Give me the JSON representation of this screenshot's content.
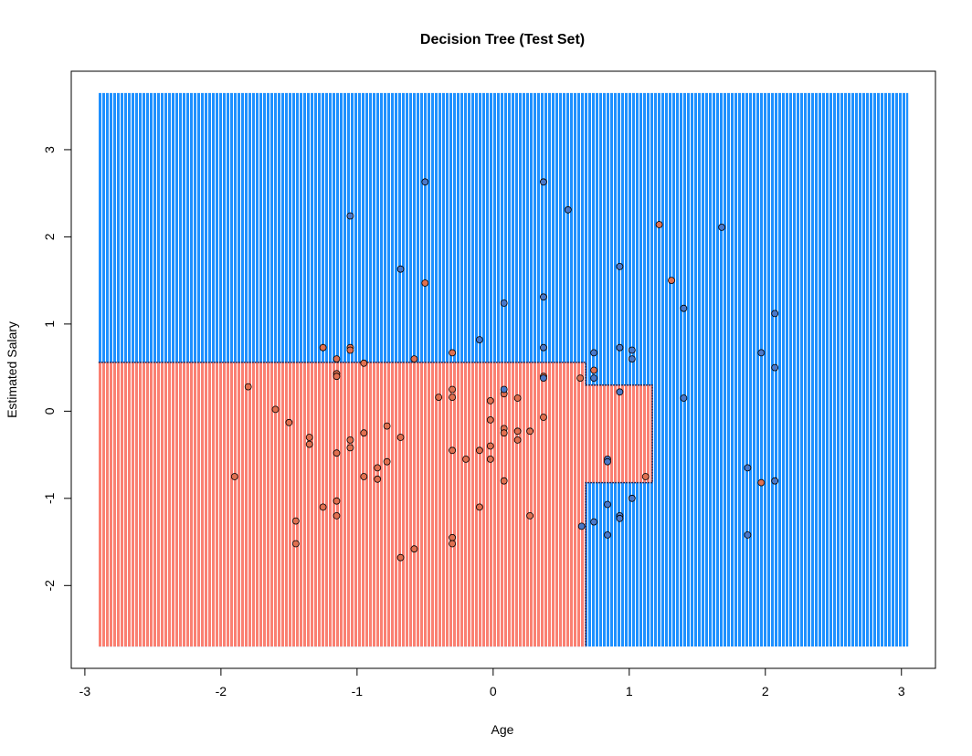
{
  "chart_data": {
    "type": "scatter",
    "title": "Decision Tree (Test Set)",
    "xlabel": "Age",
    "ylabel": "Estimated Salary",
    "xlim": [
      -3.1,
      3.25
    ],
    "ylim": [
      -2.95,
      3.9
    ],
    "grid_extent": {
      "x": [
        -2.9,
        3.05
      ],
      "y": [
        -2.7,
        3.65
      ]
    },
    "xticks": [
      -3,
      -2,
      -1,
      0,
      1,
      2,
      3
    ],
    "yticks": [
      -2,
      -1,
      0,
      1,
      2,
      3
    ],
    "xtick_labels": [
      "-3",
      "-2",
      "-1",
      "0",
      "1",
      "2",
      "3"
    ],
    "ytick_labels": [
      "-2",
      "-1",
      "0",
      "1",
      "2",
      "3"
    ],
    "grid": false,
    "colors": {
      "class_0_region": "#fa8072",
      "class_1_region": "#1e90ff",
      "class_0_point": "#e07050",
      "class_1_point": "#4a78c8",
      "point_stroke": "#000000"
    },
    "regions": [
      {
        "class": 0,
        "x": [
          -2.9,
          0.68
        ],
        "y": [
          -2.7,
          0.56
        ]
      },
      {
        "class": 0,
        "x": [
          0.68,
          1.17
        ],
        "y": [
          -0.82,
          0.3
        ]
      }
    ],
    "series": [
      {
        "class": 0,
        "points": [
          [
            -1.9,
            -0.75
          ],
          [
            -1.8,
            0.28
          ],
          [
            -1.6,
            0.02
          ],
          [
            -1.5,
            -0.13
          ],
          [
            -1.35,
            -0.3
          ],
          [
            -1.35,
            -0.38
          ],
          [
            -1.25,
            0.73
          ],
          [
            -1.25,
            -1.1
          ],
          [
            -1.15,
            0.6
          ],
          [
            -1.15,
            0.43
          ],
          [
            -1.15,
            0.4
          ],
          [
            -1.15,
            -0.48
          ],
          [
            -1.15,
            -1.03
          ],
          [
            -1.15,
            -1.2
          ],
          [
            -1.45,
            -1.26
          ],
          [
            -1.45,
            -1.52
          ],
          [
            -1.05,
            0.73
          ],
          [
            -1.05,
            0.7
          ],
          [
            -1.05,
            -0.33
          ],
          [
            -1.05,
            -0.42
          ],
          [
            -0.95,
            0.55
          ],
          [
            -0.95,
            -0.25
          ],
          [
            -0.95,
            -0.75
          ],
          [
            -0.85,
            -0.65
          ],
          [
            -0.85,
            -0.78
          ],
          [
            -0.78,
            -0.17
          ],
          [
            -0.78,
            -0.58
          ],
          [
            -0.68,
            -0.3
          ],
          [
            -0.68,
            -1.68
          ],
          [
            -0.5,
            1.47
          ],
          [
            -0.58,
            0.6
          ],
          [
            -0.58,
            -1.58
          ],
          [
            -0.4,
            0.16
          ],
          [
            -0.3,
            0.67
          ],
          [
            -0.3,
            0.25
          ],
          [
            -0.3,
            0.16
          ],
          [
            -0.3,
            -0.45
          ],
          [
            -0.3,
            -1.45
          ],
          [
            -0.3,
            -1.52
          ],
          [
            -0.2,
            -0.55
          ],
          [
            -0.1,
            -0.45
          ],
          [
            -0.1,
            -1.1
          ],
          [
            -0.02,
            0.12
          ],
          [
            -0.02,
            -0.1
          ],
          [
            -0.02,
            -0.4
          ],
          [
            -0.02,
            -0.55
          ],
          [
            0.08,
            0.2
          ],
          [
            0.08,
            -0.2
          ],
          [
            0.08,
            -0.25
          ],
          [
            0.08,
            -0.8
          ],
          [
            0.18,
            0.15
          ],
          [
            0.18,
            -0.23
          ],
          [
            0.18,
            -0.33
          ],
          [
            0.27,
            -0.23
          ],
          [
            0.27,
            -1.2
          ],
          [
            0.37,
            -0.07
          ],
          [
            0.37,
            0.4
          ],
          [
            0.64,
            0.38
          ],
          [
            0.74,
            0.47
          ],
          [
            1.12,
            -0.75
          ],
          [
            1.22,
            2.14
          ],
          [
            1.31,
            1.5
          ],
          [
            1.97,
            -0.82
          ]
        ]
      },
      {
        "class": 1,
        "points": [
          [
            -0.5,
            2.63
          ],
          [
            0.37,
            2.63
          ],
          [
            0.55,
            2.31
          ],
          [
            -1.05,
            2.24
          ],
          [
            1.68,
            2.11
          ],
          [
            0.93,
            1.66
          ],
          [
            -0.68,
            1.63
          ],
          [
            0.37,
            1.31
          ],
          [
            0.08,
            1.24
          ],
          [
            1.4,
            1.18
          ],
          [
            2.07,
            1.12
          ],
          [
            -0.1,
            0.82
          ],
          [
            0.37,
            0.73
          ],
          [
            0.93,
            0.73
          ],
          [
            1.02,
            0.7
          ],
          [
            0.74,
            0.67
          ],
          [
            1.97,
            0.67
          ],
          [
            1.02,
            0.6
          ],
          [
            2.07,
            0.5
          ],
          [
            0.37,
            0.38
          ],
          [
            0.74,
            0.38
          ],
          [
            0.08,
            0.25
          ],
          [
            0.93,
            0.22
          ],
          [
            1.4,
            0.15
          ],
          [
            0.84,
            -0.55
          ],
          [
            0.84,
            -0.58
          ],
          [
            1.87,
            -0.65
          ],
          [
            2.07,
            -0.8
          ],
          [
            1.02,
            -1.0
          ],
          [
            0.84,
            -1.07
          ],
          [
            0.93,
            -1.2
          ],
          [
            0.93,
            -1.23
          ],
          [
            0.74,
            -1.27
          ],
          [
            0.65,
            -1.32
          ],
          [
            0.84,
            -1.42
          ],
          [
            1.87,
            -1.42
          ]
        ]
      }
    ]
  }
}
